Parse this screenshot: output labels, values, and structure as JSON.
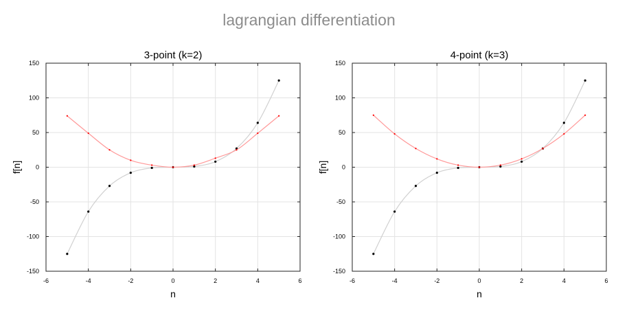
{
  "figure": {
    "suptitle": "lagrangian differentiation"
  },
  "colors": {
    "function_line": "#d0d0d0",
    "function_points": "#000000",
    "derivative_line": "#ff9999",
    "derivative_points": "#ff0000",
    "grid": "#e3e3e3",
    "axes": "#222222"
  },
  "chart_data": [
    {
      "type": "line",
      "title": "3-point (k=2)",
      "xlabel": "n",
      "ylabel": "f[n]",
      "xlim": [
        -6,
        6
      ],
      "ylim": [
        -150,
        150
      ],
      "xticks": [
        -6,
        -4,
        -2,
        0,
        2,
        4,
        6
      ],
      "yticks": [
        -150,
        -100,
        -50,
        0,
        50,
        100,
        150
      ],
      "grid": true,
      "series": [
        {
          "role": "function",
          "x": [
            -5,
            -4,
            -3,
            -2,
            -1,
            0,
            1,
            2,
            3,
            4,
            5
          ],
          "y": [
            -125,
            -64,
            -27,
            -8,
            -1,
            0,
            1,
            8,
            27,
            64,
            125
          ]
        },
        {
          "role": "derivative",
          "x": [
            -5,
            -4,
            -3,
            -2,
            -1,
            0,
            1,
            2,
            3,
            4,
            5
          ],
          "y": [
            74,
            49,
            25,
            10,
            3,
            0,
            3,
            13,
            25,
            49,
            74
          ]
        }
      ]
    },
    {
      "type": "line",
      "title": "4-point (k=3)",
      "xlabel": "n",
      "ylabel": "f[n]",
      "xlim": [
        -6,
        6
      ],
      "ylim": [
        -150,
        150
      ],
      "xticks": [
        -6,
        -4,
        -2,
        0,
        2,
        4,
        6
      ],
      "yticks": [
        -150,
        -100,
        -50,
        0,
        50,
        100,
        150
      ],
      "grid": true,
      "series": [
        {
          "role": "function",
          "x": [
            -5,
            -4,
            -3,
            -2,
            -1,
            0,
            1,
            2,
            3,
            4,
            5
          ],
          "y": [
            -125,
            -64,
            -27,
            -8,
            -1,
            0,
            1,
            8,
            27,
            64,
            125
          ]
        },
        {
          "role": "derivative",
          "x": [
            -5,
            -4,
            -3,
            -2,
            -1,
            0,
            1,
            2,
            3,
            4,
            5
          ],
          "y": [
            75,
            48,
            27,
            12,
            3,
            0,
            3,
            12,
            27,
            48,
            75
          ]
        }
      ]
    }
  ]
}
